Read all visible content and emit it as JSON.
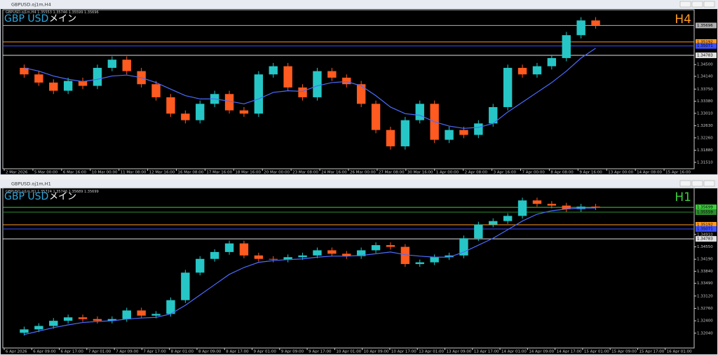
{
  "chart_data": [
    {
      "type": "candlestick",
      "window_title": "GBPUSD.oj1m,H4",
      "info": "GBPUSD.oj1m,H4  1.35553 1.35746 1.35599 1.35696",
      "symbol": "GBP USD",
      "sub_label": "メイン",
      "timeframe": "H4",
      "timeframe_color": "#ff9a1f",
      "up_color": "#26c6c6",
      "down_color": "#ff5a1f",
      "ma_color": "#4a6cff",
      "ylim": [
        1.314,
        1.3609
      ],
      "yticks": [
        {
          "value": 1.345,
          "label": "1.34500"
        },
        {
          "value": 1.3414,
          "label": "1.34140"
        },
        {
          "value": 1.3375,
          "label": "1.33750"
        },
        {
          "value": 1.3338,
          "label": "1.33380"
        },
        {
          "value": 1.3301,
          "label": "1.33010"
        },
        {
          "value": 1.3263,
          "label": "1.32630"
        },
        {
          "value": 1.3226,
          "label": "1.32260"
        },
        {
          "value": 1.3188,
          "label": "1.31880"
        },
        {
          "value": 1.3151,
          "label": "1.31510"
        }
      ],
      "levels": [
        {
          "value": 1.35696,
          "color": "#b0b0b0"
        },
        {
          "value": 1.35192,
          "color": "#ff9a1f"
        },
        {
          "value": 1.35071,
          "color": "#3c50ff"
        },
        {
          "value": 1.34783,
          "color": "#e0e0e0"
        }
      ],
      "xtick_labels": [
        "2 Mar 2026",
        "5 Mar 00:00",
        "6 Mar 16:00",
        "10 Mar 00:00",
        "11 Mar 08:00",
        "12 Mar 16:00",
        "16 Mar 08:00",
        "17 Mar 16:00",
        "18 Mar 16:00",
        "20 Mar 00:00",
        "23 Mar 08:00",
        "24 Mar 16:00",
        "26 Mar 00:00",
        "27 Mar 08:00",
        "30 Mar 16:00",
        "1 Apr 00:00",
        "2 Apr 08:00",
        "3 Apr 16:00",
        "7 Apr 00:00",
        "8 Apr 08:00",
        "9 Apr 16:00",
        "13 Apr 00:00",
        "14 Apr 08:00",
        "15 Apr 16:00"
      ],
      "open": [
        1.344,
        1.342,
        1.3395,
        1.337,
        1.34,
        1.3385,
        1.344,
        1.3465,
        1.343,
        1.339,
        1.335,
        1.33,
        1.328,
        1.333,
        1.336,
        1.331,
        1.33,
        1.342,
        1.3445,
        1.338,
        1.335,
        1.343,
        1.341,
        1.339,
        1.333,
        1.325,
        1.32,
        1.328,
        1.333,
        1.322,
        1.325,
        1.3235,
        1.327,
        1.332,
        1.344,
        1.342,
        1.3445,
        1.347,
        1.354,
        1.3585
      ],
      "high": [
        1.345,
        1.343,
        1.3405,
        1.341,
        1.341,
        1.345,
        1.3475,
        1.3475,
        1.344,
        1.34,
        1.336,
        1.331,
        1.334,
        1.337,
        1.337,
        1.332,
        1.343,
        1.3455,
        1.3455,
        1.339,
        1.344,
        1.344,
        1.342,
        1.34,
        1.334,
        1.326,
        1.329,
        1.334,
        1.334,
        1.326,
        1.326,
        1.328,
        1.333,
        1.345,
        1.345,
        1.3455,
        1.348,
        1.355,
        1.3595,
        1.3595
      ],
      "low": [
        1.341,
        1.3385,
        1.336,
        1.336,
        1.3375,
        1.3375,
        1.343,
        1.342,
        1.338,
        1.334,
        1.329,
        1.327,
        1.327,
        1.332,
        1.33,
        1.329,
        1.329,
        1.341,
        1.337,
        1.334,
        1.334,
        1.34,
        1.338,
        1.332,
        1.324,
        1.319,
        1.319,
        1.327,
        1.321,
        1.321,
        1.3225,
        1.3225,
        1.326,
        1.331,
        1.341,
        1.341,
        1.3435,
        1.346,
        1.353,
        1.356
      ],
      "close": [
        1.342,
        1.3395,
        1.337,
        1.34,
        1.3385,
        1.344,
        1.3465,
        1.343,
        1.339,
        1.335,
        1.33,
        1.328,
        1.333,
        1.336,
        1.331,
        1.33,
        1.342,
        1.3445,
        1.338,
        1.335,
        1.343,
        1.341,
        1.339,
        1.333,
        1.325,
        1.32,
        1.328,
        1.333,
        1.322,
        1.325,
        1.3235,
        1.327,
        1.332,
        1.344,
        1.342,
        1.3445,
        1.347,
        1.354,
        1.3585,
        1.357
      ],
      "ma": [
        1.344,
        1.343,
        1.3415,
        1.3405,
        1.3398,
        1.3405,
        1.3415,
        1.3418,
        1.341,
        1.3395,
        1.3375,
        1.3355,
        1.3345,
        1.3345,
        1.3338,
        1.333,
        1.3345,
        1.3365,
        1.337,
        1.3368,
        1.3385,
        1.3395,
        1.3398,
        1.3385,
        1.3355,
        1.332,
        1.33,
        1.3295,
        1.3275,
        1.3262,
        1.3255,
        1.3258,
        1.327,
        1.3305,
        1.3335,
        1.3365,
        1.3395,
        1.343,
        1.347,
        1.35
      ]
    },
    {
      "type": "candlestick",
      "window_title": "GBPUSD.oj1m,H1",
      "info": "GBPUSD.oj1m,H1  1.35724 1.35746 1.35689 1.35699",
      "symbol": "GBP USD",
      "sub_label": "メイン",
      "timeframe": "H1",
      "timeframe_color": "#3ccf3c",
      "up_color": "#26c6c6",
      "down_color": "#ff5a1f",
      "ma_color": "#4a6cff",
      "ylim": [
        1.3169,
        1.3619
      ],
      "yticks": [
        {
          "value": 1.3491,
          "label": "1.34910"
        },
        {
          "value": 1.3455,
          "label": "1.34550"
        },
        {
          "value": 1.3419,
          "label": "1.34190"
        },
        {
          "value": 1.3384,
          "label": "1.33840"
        },
        {
          "value": 1.3349,
          "label": "1.33490"
        },
        {
          "value": 1.3312,
          "label": "1.33120"
        },
        {
          "value": 1.3276,
          "label": "1.32760"
        },
        {
          "value": 1.324,
          "label": "1.32400"
        },
        {
          "value": 1.3204,
          "label": "1.32040"
        }
      ],
      "levels": [
        {
          "value": 1.35699,
          "color": "#3ccf3c"
        },
        {
          "value": 1.35559,
          "color": "#2e8b2e"
        },
        {
          "value": 1.35192,
          "color": "#ff9a1f"
        },
        {
          "value": 1.35071,
          "color": "#3c50ff"
        },
        {
          "value": 1.34783,
          "color": "#e0e0e0"
        }
      ],
      "xtick_labels": [
        "6 Apr 2026",
        "6 Apr 09:00",
        "6 Apr 17:00",
        "7 Apr 01:00",
        "7 Apr 09:00",
        "7 Apr 17:00",
        "8 Apr 01:00",
        "8 Apr 09:00",
        "8 Apr 17:00",
        "9 Apr 01:00",
        "9 Apr 09:00",
        "9 Apr 17:00",
        "10 Apr 01:00",
        "10 Apr 09:00",
        "10 Apr 17:00",
        "13 Apr 01:00",
        "13 Apr 09:00",
        "13 Apr 17:00",
        "14 Apr 01:00",
        "14 Apr 09:00",
        "14 Apr 17:00",
        "15 Apr 01:00",
        "15 Apr 09:00",
        "15 Apr 17:00",
        "16 Apr 01:00"
      ],
      "open": [
        1.3205,
        1.3215,
        1.3225,
        1.324,
        1.325,
        1.3245,
        1.324,
        1.3245,
        1.327,
        1.3255,
        1.326,
        1.33,
        1.338,
        1.342,
        1.344,
        1.3465,
        1.343,
        1.342,
        1.3418,
        1.3425,
        1.343,
        1.3445,
        1.3435,
        1.3428,
        1.3445,
        1.346,
        1.3455,
        1.3405,
        1.341,
        1.3425,
        1.343,
        1.348,
        1.352,
        1.353,
        1.3545,
        1.359,
        1.358,
        1.3575,
        1.3565,
        1.3572
      ],
      "high": [
        1.3223,
        1.3233,
        1.3248,
        1.3258,
        1.3258,
        1.3253,
        1.3253,
        1.3278,
        1.3278,
        1.3268,
        1.3308,
        1.3388,
        1.3428,
        1.3448,
        1.3473,
        1.3473,
        1.3438,
        1.3428,
        1.3433,
        1.3438,
        1.3453,
        1.3453,
        1.3443,
        1.3453,
        1.3468,
        1.3468,
        1.3463,
        1.3418,
        1.3433,
        1.3438,
        1.3488,
        1.3528,
        1.3538,
        1.3553,
        1.3598,
        1.3598,
        1.3588,
        1.3583,
        1.358,
        1.358
      ],
      "low": [
        1.3197,
        1.3207,
        1.3217,
        1.3232,
        1.3237,
        1.3232,
        1.3232,
        1.3237,
        1.3247,
        1.3247,
        1.3252,
        1.3292,
        1.3372,
        1.3412,
        1.3432,
        1.3422,
        1.3412,
        1.341,
        1.341,
        1.3417,
        1.3422,
        1.3427,
        1.342,
        1.342,
        1.3437,
        1.3447,
        1.3397,
        1.3397,
        1.3402,
        1.3417,
        1.3422,
        1.3472,
        1.3512,
        1.3522,
        1.3537,
        1.3572,
        1.3567,
        1.3557,
        1.3557,
        1.3562
      ],
      "close": [
        1.3215,
        1.3225,
        1.324,
        1.325,
        1.3245,
        1.324,
        1.3245,
        1.327,
        1.3255,
        1.326,
        1.33,
        1.338,
        1.342,
        1.344,
        1.3465,
        1.343,
        1.342,
        1.3418,
        1.3425,
        1.343,
        1.3445,
        1.3435,
        1.3428,
        1.3445,
        1.346,
        1.3455,
        1.3405,
        1.341,
        1.3425,
        1.343,
        1.348,
        1.352,
        1.353,
        1.3545,
        1.359,
        1.358,
        1.3575,
        1.3565,
        1.3572,
        1.357
      ],
      "ma": [
        1.32,
        1.321,
        1.322,
        1.3228,
        1.3235,
        1.3238,
        1.324,
        1.3245,
        1.3248,
        1.325,
        1.326,
        1.3285,
        1.3315,
        1.3345,
        1.3375,
        1.3395,
        1.341,
        1.3415,
        1.3418,
        1.342,
        1.3425,
        1.3428,
        1.3428,
        1.343,
        1.3435,
        1.344,
        1.3432,
        1.3428,
        1.3425,
        1.3425,
        1.344,
        1.346,
        1.348,
        1.3505,
        1.353,
        1.355,
        1.356,
        1.3565,
        1.3568,
        1.3568
      ]
    }
  ]
}
